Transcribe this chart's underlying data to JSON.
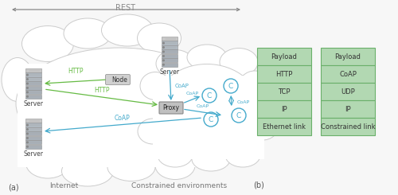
{
  "bg_color": "#f7f7f7",
  "cloud_color": "#ffffff",
  "cloud_edge": "#cccccc",
  "table_fill": "#b2d8b2",
  "table_edge": "#6ab06a",
  "table_text_color": "#333333",
  "rest_arrow_color": "#888888",
  "http_color": "#66bb44",
  "coap_color": "#44aacc",
  "stack1": [
    "Payload",
    "HTTP",
    "TCP",
    "IP",
    "Ethernet link"
  ],
  "stack2": [
    "Payload",
    "CoAP",
    "UDP",
    "IP",
    "Constrained link"
  ],
  "label_a": "(a)",
  "label_b": "(b)",
  "label_internet": "Internet",
  "label_constrained": "Constrained environments",
  "rest_label": "REST"
}
